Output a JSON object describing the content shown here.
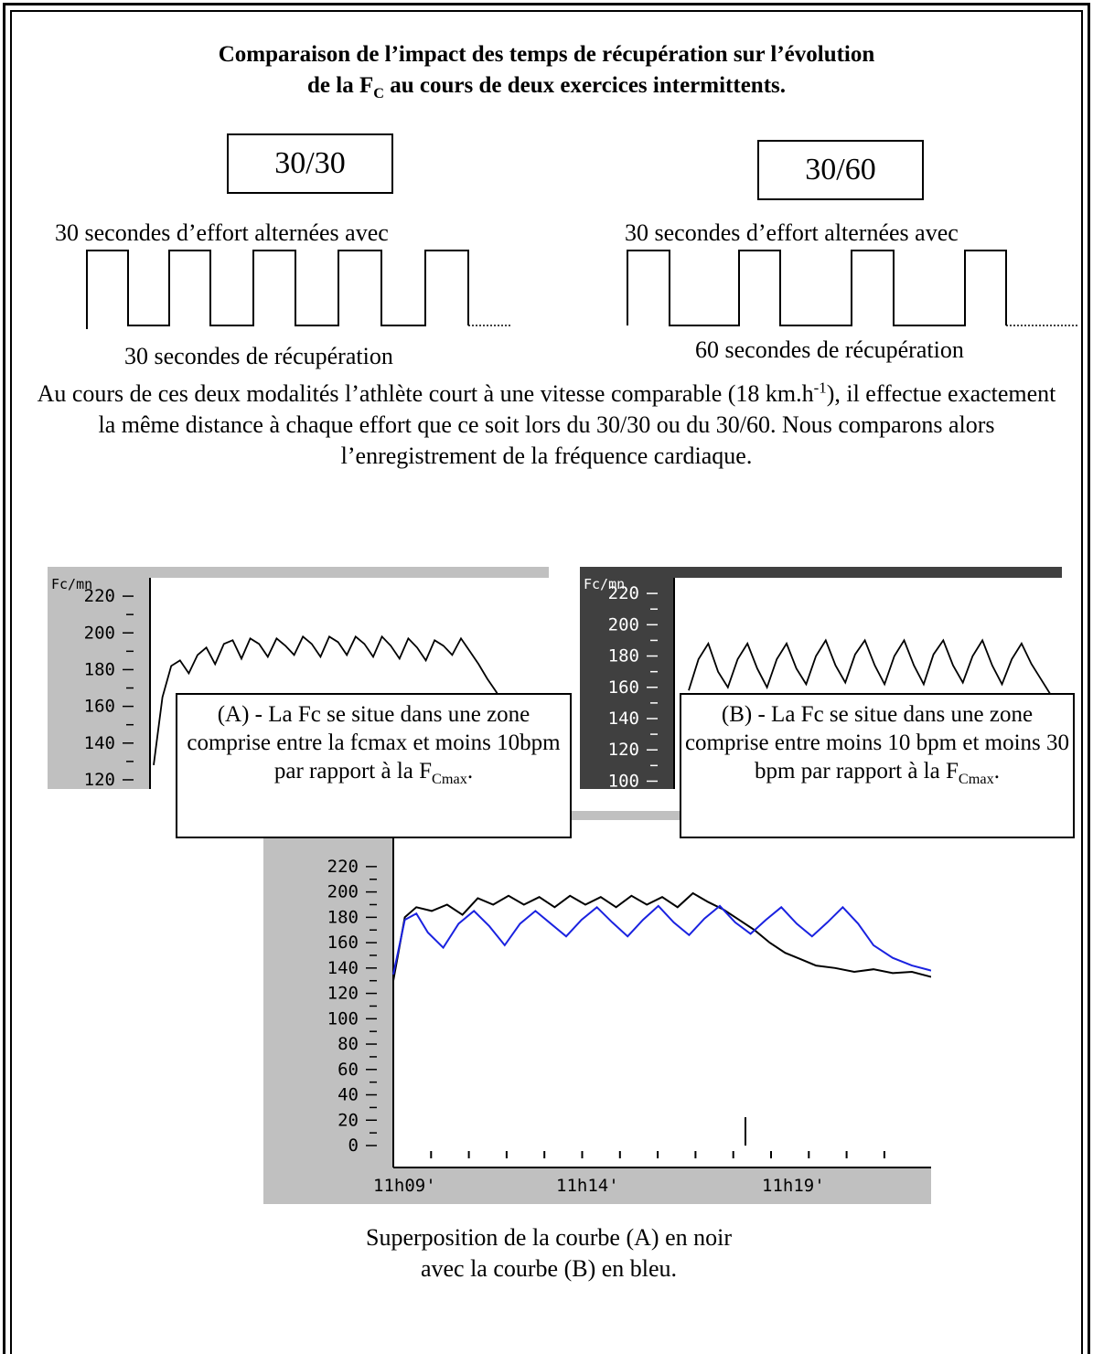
{
  "title": {
    "line1": "Comparaison de l’impact des temps de récupération sur l’évolution",
    "line2_prefix": "de la F",
    "line2_sub": "C",
    "line2_suffix": " au cours de deux exercices intermittents."
  },
  "left_protocol": {
    "label": "30/30",
    "effort_text": "30 secondes  d’effort alternées avec",
    "recovery_text": "30 secondes de récupération"
  },
  "right_protocol": {
    "label": "30/60",
    "effort_text": "30 secondes  d’effort alternées avec",
    "recovery_text": "60 secondes de récupération"
  },
  "paragraph": {
    "part1": "Au cours de ces deux modalités l’athlète court à une vitesse comparable (18 km.h",
    "sup": "-1",
    "part2": "), il effectue exactement la même distance à chaque effort que ce soit lors du 30/30 ou du 30/60. Nous comparons alors l’enregistrement de la fréquence cardiaque."
  },
  "callout_a": {
    "text": "(A) -  La Fc se situe dans une zone comprise entre la fcmax et moins 10bpm par rapport à la F",
    "sub": "Cmax",
    "end": "."
  },
  "callout_b": {
    "text": "(B) - La Fc se situe dans une zone comprise entre moins 10 bpm et moins 30 bpm par rapport à la F",
    "sub": "Cmax",
    "end": "."
  },
  "caption": {
    "line1": "Superposition de la courbe (A) en noir",
    "line2": "avec la courbe (B) en bleu."
  },
  "colors": {
    "panel_light": "#c0c0c0",
    "panel_dark": "#404040",
    "curve_a": "#000000",
    "curve_b": "#1a22e0"
  },
  "chart_data": [
    {
      "type": "line",
      "ylabel": "Fc/mn",
      "ylim": [
        115,
        230
      ],
      "yticks": [
        120,
        140,
        160,
        180,
        200,
        220
      ],
      "series": [
        {
          "values": [
            128,
            165,
            182,
            185,
            178,
            188,
            192,
            183,
            194,
            196,
            186,
            197,
            194,
            187,
            197,
            193,
            188,
            198,
            194,
            187,
            198,
            195,
            188,
            198,
            194,
            187,
            198,
            193,
            186,
            197,
            192,
            185,
            196,
            193,
            188,
            197,
            190,
            183,
            175,
            168,
            160
          ]
        }
      ]
    },
    {
      "type": "line",
      "ylabel": "Fc/mn",
      "ylim": [
        95,
        230
      ],
      "yticks": [
        100,
        120,
        140,
        160,
        180,
        200,
        220
      ],
      "series": [
        {
          "values": [
            158,
            178,
            188,
            170,
            160,
            178,
            188,
            172,
            160,
            178,
            188,
            172,
            162,
            180,
            190,
            174,
            163,
            181,
            190,
            174,
            162,
            180,
            190,
            174,
            162,
            181,
            190,
            174,
            163,
            180,
            190,
            174,
            162,
            178,
            188,
            175,
            165,
            155
          ]
        }
      ]
    },
    {
      "type": "line",
      "ylabel": "Fc/mn",
      "ylim": [
        0,
        230
      ],
      "yticks": [
        0,
        20,
        40,
        60,
        80,
        100,
        120,
        140,
        160,
        180,
        200,
        220
      ],
      "x_tick_labels": [
        "11h09'",
        "11h14'",
        "11h19'"
      ],
      "legend": "none",
      "series": [
        {
          "name": "(A)",
          "color": "#000000",
          "x": [
            0,
            0.3,
            0.6,
            1.0,
            1.4,
            1.8,
            2.2,
            2.6,
            3.0,
            3.4,
            3.8,
            4.2,
            4.6,
            5.0,
            5.4,
            5.8,
            6.2,
            6.6,
            7.0,
            7.4,
            7.8,
            8.2,
            8.6,
            9.0,
            9.4,
            9.8,
            10.2,
            10.6,
            11.0,
            11.5,
            12.0,
            12.5,
            13.0,
            13.5,
            14.0
          ],
          "values": [
            130,
            180,
            188,
            185,
            190,
            182,
            195,
            190,
            197,
            190,
            196,
            188,
            197,
            190,
            196,
            188,
            197,
            190,
            196,
            188,
            199,
            192,
            186,
            178,
            170,
            160,
            152,
            147,
            142,
            140,
            137,
            139,
            136,
            137,
            133
          ]
        },
        {
          "name": "(B)",
          "color": "#1a22e0",
          "x": [
            0,
            0.3,
            0.6,
            0.9,
            1.3,
            1.7,
            2.1,
            2.5,
            2.9,
            3.3,
            3.7,
            4.1,
            4.5,
            4.9,
            5.3,
            5.7,
            6.1,
            6.5,
            6.9,
            7.3,
            7.7,
            8.1,
            8.5,
            8.9,
            9.3,
            9.7,
            10.1,
            10.5,
            10.9,
            11.3,
            11.7,
            12.1,
            12.5,
            13.0,
            13.5,
            14.0
          ],
          "values": [
            135,
            178,
            183,
            168,
            156,
            175,
            185,
            173,
            158,
            175,
            185,
            175,
            165,
            178,
            188,
            176,
            165,
            178,
            189,
            176,
            166,
            179,
            189,
            176,
            167,
            178,
            188,
            175,
            165,
            176,
            188,
            175,
            158,
            148,
            142,
            138
          ]
        }
      ]
    }
  ]
}
